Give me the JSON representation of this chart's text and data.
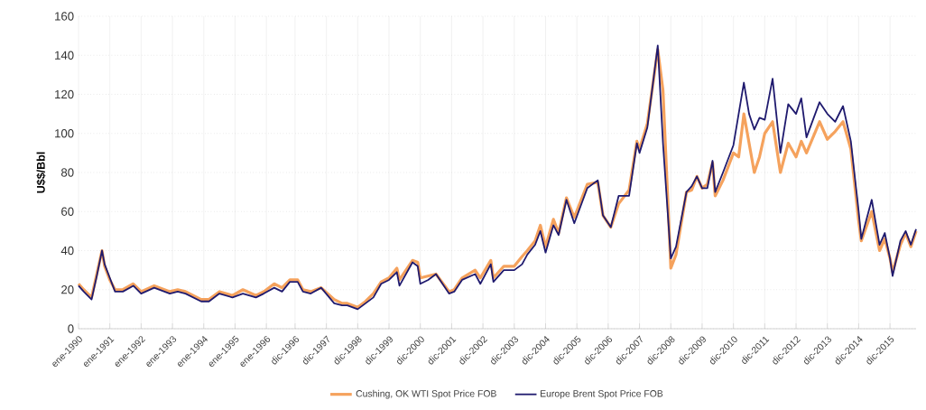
{
  "chart_data": {
    "type": "line",
    "ylabel": "U$$/Bbl",
    "x": [
      "1990-01",
      "1990-03",
      "1990-06",
      "1990-08",
      "1990-10",
      "1990-11",
      "1991-01",
      "1991-03",
      "1991-06",
      "1991-10",
      "1992-01",
      "1992-06",
      "1992-12",
      "1993-03",
      "1993-06",
      "1993-12",
      "1994-03",
      "1994-07",
      "1994-12",
      "1995-04",
      "1995-09",
      "1995-12",
      "1996-04",
      "1996-07",
      "1996-10",
      "1997-01",
      "1997-03",
      "1997-06",
      "1997-10",
      "1998-03",
      "1998-06",
      "1998-08",
      "1998-12",
      "1999-03",
      "1999-06",
      "1999-09",
      "1999-12",
      "2000-03",
      "2000-04",
      "2000-09",
      "2000-11",
      "2000-12",
      "2001-03",
      "2001-06",
      "2001-11",
      "2002-01",
      "2002-04",
      "2002-09",
      "2002-11",
      "2003-03",
      "2003-04",
      "2003-08",
      "2003-12",
      "2004-03",
      "2004-05",
      "2004-08",
      "2004-10",
      "2004-12",
      "2005-03",
      "2005-05",
      "2005-08",
      "2005-11",
      "2006-04",
      "2006-08",
      "2006-10",
      "2007-01",
      "2007-04",
      "2007-08",
      "2007-11",
      "2007-12",
      "2008-03",
      "2008-07",
      "2008-09",
      "2008-12",
      "2009-02",
      "2009-06",
      "2009-08",
      "2009-10",
      "2009-12",
      "2010-02",
      "2010-04",
      "2010-05",
      "2010-08",
      "2010-12",
      "2011-02",
      "2011-04",
      "2011-06",
      "2011-08",
      "2011-10",
      "2011-12",
      "2012-03",
      "2012-06",
      "2012-09",
      "2012-12",
      "2013-02",
      "2013-04",
      "2013-09",
      "2013-12",
      "2014-03",
      "2014-06",
      "2014-09",
      "2014-12",
      "2015-01",
      "2015-05",
      "2015-08",
      "2015-10",
      "2015-12",
      "2016-01",
      "2016-04",
      "2016-06",
      "2016-08",
      "2016-10"
    ],
    "series": [
      {
        "name": "Cushing, OK WTI Spot Price FOB",
        "color": "#f5a25d",
        "values": [
          23,
          20,
          16,
          28,
          40,
          32,
          25,
          20,
          20,
          23,
          19,
          22,
          19,
          20,
          19,
          15,
          15,
          19,
          17,
          20,
          17,
          19,
          23,
          21,
          25,
          25,
          20,
          19,
          21,
          15,
          13,
          13,
          11,
          14,
          18,
          24,
          26,
          31,
          25,
          35,
          34,
          26,
          27,
          28,
          19,
          20,
          26,
          30,
          26,
          35,
          26,
          32,
          32,
          37,
          40,
          45,
          53,
          42,
          56,
          49,
          67,
          57,
          74,
          75,
          58,
          52,
          64,
          71,
          96,
          92,
          105,
          143,
          122,
          31,
          38,
          70,
          71,
          78,
          72,
          74,
          85,
          68,
          76,
          90,
          88,
          110,
          95,
          80,
          88,
          100,
          106,
          80,
          95,
          88,
          96,
          90,
          106,
          97,
          101,
          106,
          92,
          55,
          45,
          60,
          40,
          46,
          36,
          29,
          43,
          49,
          42,
          50
        ]
      },
      {
        "name": "Europe Brent Spot Price FOB",
        "color": "#1f1a6e",
        "values": [
          22,
          19,
          15,
          27,
          40,
          33,
          26,
          19,
          19,
          22,
          18,
          21,
          18,
          19,
          18,
          14,
          14,
          18,
          16,
          18,
          16,
          18,
          21,
          19,
          24,
          24,
          19,
          18,
          21,
          13,
          12,
          12,
          10,
          13,
          16,
          23,
          25,
          29,
          22,
          34,
          32,
          23,
          25,
          28,
          18,
          19,
          25,
          28,
          23,
          33,
          24,
          30,
          30,
          33,
          38,
          43,
          50,
          39,
          53,
          48,
          66,
          54,
          72,
          76,
          58,
          52,
          68,
          68,
          95,
          90,
          103,
          145,
          95,
          36,
          42,
          70,
          73,
          78,
          72,
          72,
          86,
          70,
          80,
          94,
          110,
          126,
          110,
          102,
          108,
          107,
          128,
          90,
          115,
          110,
          118,
          98,
          116,
          110,
          106,
          114,
          96,
          60,
          46,
          66,
          43,
          49,
          36,
          27,
          45,
          50,
          43,
          51
        ]
      }
    ],
    "xlim": [
      "1990-01",
      "2016-10"
    ],
    "xticks": [
      {
        "value": "1990-01",
        "label": "ene-1990"
      },
      {
        "value": "1991-01",
        "label": "ene-1991"
      },
      {
        "value": "1992-01",
        "label": "ene-1992"
      },
      {
        "value": "1993-01",
        "label": "ene-1993"
      },
      {
        "value": "1994-01",
        "label": "ene-1994"
      },
      {
        "value": "1995-01",
        "label": "ene-1995"
      },
      {
        "value": "1996-01",
        "label": "ene-1996"
      },
      {
        "value": "1996-12",
        "label": "dic-1996"
      },
      {
        "value": "1997-12",
        "label": "dic-1997"
      },
      {
        "value": "1998-12",
        "label": "dic-1998"
      },
      {
        "value": "1999-12",
        "label": "dic-1999"
      },
      {
        "value": "2000-12",
        "label": "dic-2000"
      },
      {
        "value": "2001-12",
        "label": "dic-2001"
      },
      {
        "value": "2002-12",
        "label": "dic-2002"
      },
      {
        "value": "2003-12",
        "label": "dic-2003"
      },
      {
        "value": "2004-12",
        "label": "dic-2004"
      },
      {
        "value": "2005-12",
        "label": "dic-2005"
      },
      {
        "value": "2006-12",
        "label": "dic-2006"
      },
      {
        "value": "2007-12",
        "label": "dic-2007"
      },
      {
        "value": "2008-12",
        "label": "dic-2008"
      },
      {
        "value": "2009-12",
        "label": "dic-2009"
      },
      {
        "value": "2010-12",
        "label": "dic-2010"
      },
      {
        "value": "2011-12",
        "label": "dic-2011"
      },
      {
        "value": "2012-12",
        "label": "dic-2012"
      },
      {
        "value": "2013-12",
        "label": "dic-2013"
      },
      {
        "value": "2014-12",
        "label": "dic-2014"
      },
      {
        "value": "2015-12",
        "label": "dic-2015"
      }
    ],
    "ylim": [
      0,
      160
    ],
    "yticks": [
      0,
      20,
      40,
      60,
      80,
      100,
      120,
      140,
      160
    ],
    "grid": true,
    "legend": "bottom",
    "marker": "none",
    "line_style": "solid"
  }
}
